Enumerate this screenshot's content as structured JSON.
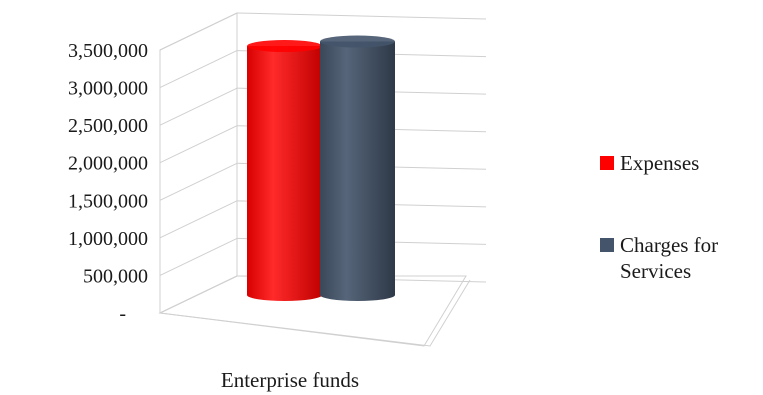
{
  "chart_data": {
    "type": "bar",
    "style": "3d-cylinder",
    "title": "",
    "xlabel": "",
    "ylabel": "",
    "categories": [
      "Enterprise funds"
    ],
    "series": [
      {
        "name": "Expenses",
        "values": [
          3220000
        ],
        "color": "#ff0000"
      },
      {
        "name": "Charges for Services",
        "values": [
          3280000
        ],
        "color": "#44546a"
      }
    ],
    "ylim": [
      0,
      3500000
    ],
    "yticks": [
      0,
      500000,
      1000000,
      1500000,
      2000000,
      2500000,
      3000000,
      3500000
    ],
    "ytick_labels": [
      "-",
      "500,000",
      "1,000,000",
      "1,500,000",
      "2,000,000",
      "2,500,000",
      "3,000,000",
      "3,500,000"
    ],
    "grid": true,
    "legend_position": "right"
  }
}
